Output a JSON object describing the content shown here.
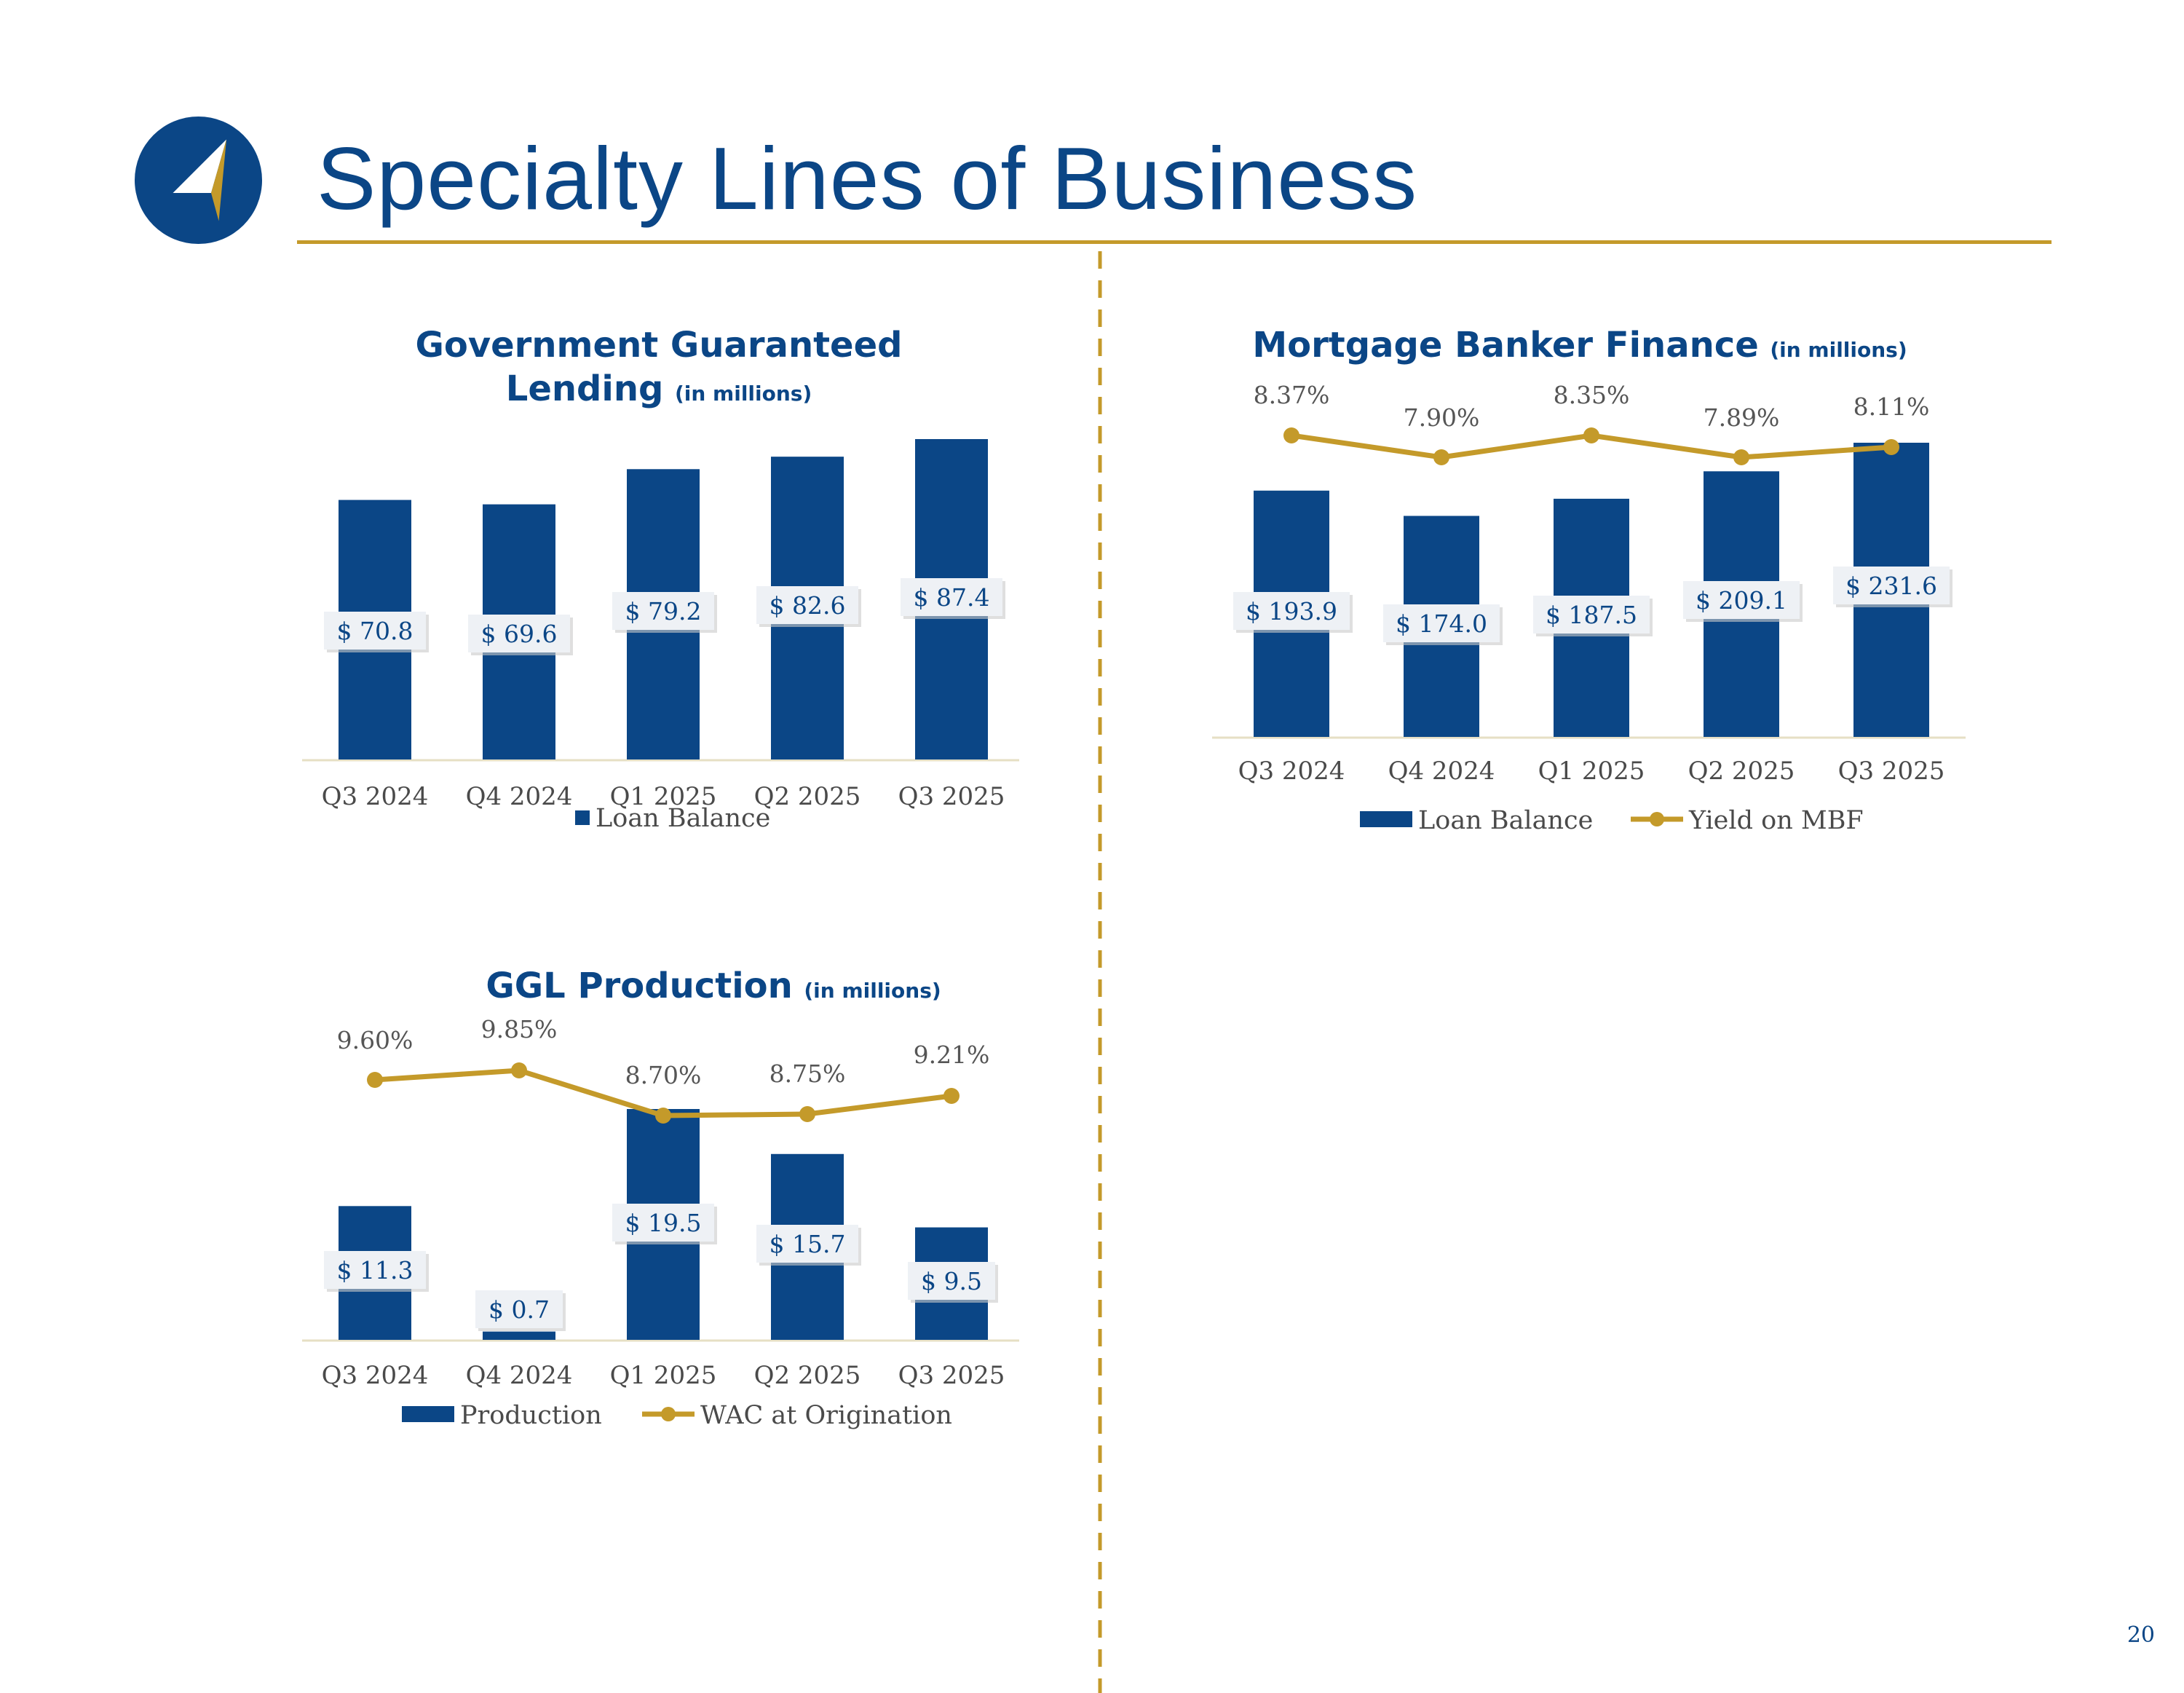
{
  "page": {
    "title": "Specialty Lines of Business",
    "page_number": "20",
    "colors": {
      "navy": "#0b4686",
      "gold": "#c49a2a"
    }
  },
  "chart_data": [
    {
      "type": "bar",
      "id": "ggl",
      "title_line1": "Government Guaranteed",
      "title_line2": "Lending",
      "title_suffix": "(in millions)",
      "categories": [
        "Q3 2024",
        "Q4 2024",
        "Q1 2025",
        "Q2 2025",
        "Q3 2025"
      ],
      "series": [
        {
          "name": "Loan Balance",
          "values": [
            70.8,
            69.6,
            79.2,
            82.6,
            87.4
          ],
          "labels": [
            "$ 70.8",
            "$ 69.6",
            "$ 79.2",
            "$ 82.6",
            "$ 87.4"
          ]
        }
      ],
      "ylim": [
        0,
        87.4
      ],
      "legend": [
        "Loan Balance"
      ]
    },
    {
      "type": "bar",
      "id": "mbf",
      "title": "Mortgage Banker Finance",
      "title_suffix": "(in millions)",
      "categories": [
        "Q3 2024",
        "Q4 2024",
        "Q1 2025",
        "Q2 2025",
        "Q3 2025"
      ],
      "series": [
        {
          "name": "Loan Balance",
          "values": [
            193.9,
            174.0,
            187.5,
            209.1,
            231.6
          ],
          "labels": [
            "$ 193.9",
            "$ 174.0",
            "$ 187.5",
            "$ 209.1",
            "$ 231.6"
          ]
        },
        {
          "name": "Yield on MBF",
          "type": "line",
          "values": [
            8.37,
            7.9,
            8.35,
            7.89,
            8.11
          ],
          "labels": [
            "8.37%",
            "7.90%",
            "8.35%",
            "7.89%",
            "8.11%"
          ]
        }
      ],
      "ylim": [
        0,
        231.6
      ],
      "y2lim": [
        7.0,
        8.5
      ],
      "legend": [
        "Loan Balance",
        "Yield on MBF"
      ]
    },
    {
      "type": "bar",
      "id": "prod",
      "title": "GGL Production",
      "title_suffix": "(in millions)",
      "categories": [
        "Q3 2024",
        "Q4 2024",
        "Q1 2025",
        "Q2 2025",
        "Q3 2025"
      ],
      "series": [
        {
          "name": "Production",
          "values": [
            11.3,
            0.7,
            19.5,
            15.7,
            9.5
          ],
          "labels": [
            "$ 11.3",
            "$ 0.7",
            "$ 19.5",
            "$ 15.7",
            "$ 9.5"
          ]
        },
        {
          "name": "WAC at Origination",
          "type": "line",
          "values": [
            9.6,
            9.85,
            8.7,
            8.75,
            9.21
          ],
          "labels": [
            "9.60%",
            "9.85%",
            "8.70%",
            "8.75%",
            "9.21%"
          ]
        }
      ],
      "ylim": [
        0,
        19.5
      ],
      "y2lim": [
        7.0,
        10.2
      ],
      "legend": [
        "Production",
        "WAC at Origination"
      ]
    }
  ]
}
